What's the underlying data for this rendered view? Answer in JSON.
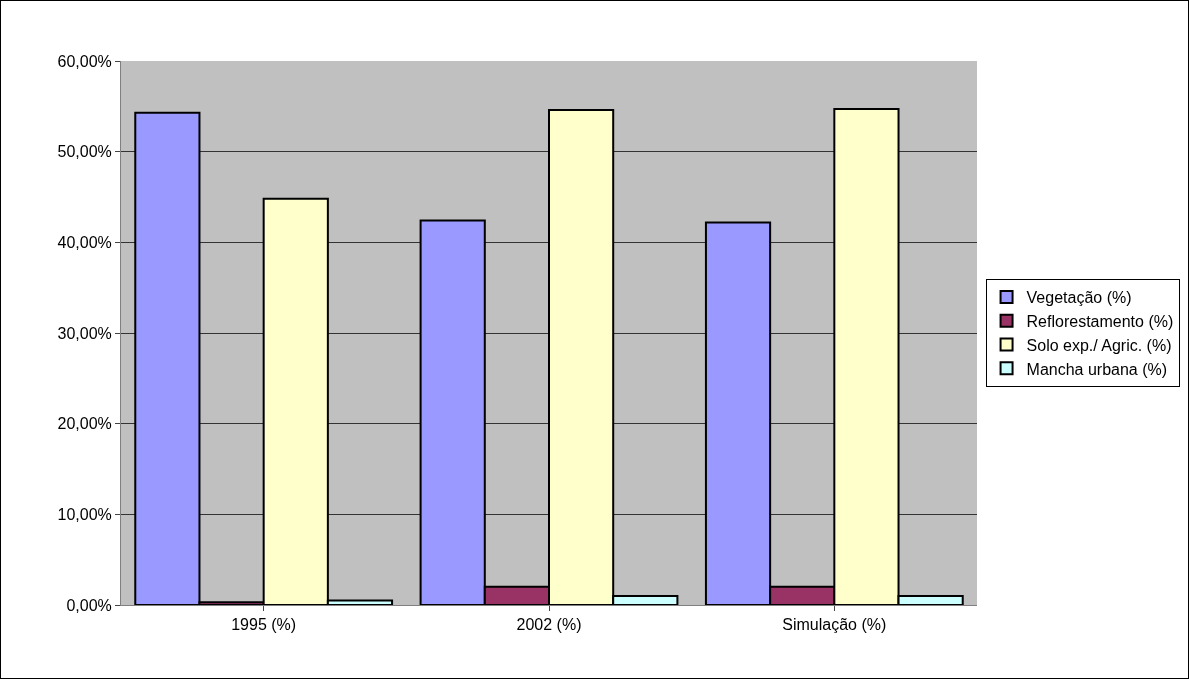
{
  "chart_data": {
    "type": "bar",
    "categories": [
      "1995 (%)",
      "2002 (%)",
      "Simulação (%)"
    ],
    "series": [
      {
        "name": "Vegetação (%)",
        "color": "#9999ff",
        "values": [
          54.3,
          42.4,
          42.2
        ]
      },
      {
        "name": "Reflorestamento (%)",
        "color": "#993366",
        "values": [
          0.3,
          2.0,
          2.0
        ]
      },
      {
        "name": "Solo exp./ Agric. (%)",
        "color": "#ffffcc",
        "values": [
          44.8,
          54.6,
          54.7
        ]
      },
      {
        "name": "Mancha urbana (%)",
        "color": "#ccffff",
        "values": [
          0.5,
          1.0,
          1.0
        ]
      }
    ],
    "ylim": [
      0,
      60
    ],
    "yticks": [
      {
        "value": 0,
        "label": "0,00%"
      },
      {
        "value": 10,
        "label": "10,00%"
      },
      {
        "value": 20,
        "label": "20,00%"
      },
      {
        "value": 30,
        "label": "30,00%"
      },
      {
        "value": 40,
        "label": "40,00%"
      },
      {
        "value": 50,
        "label": "50,00%"
      },
      {
        "value": 60,
        "label": "60,00%"
      }
    ],
    "grid": "y",
    "legend": "right"
  }
}
